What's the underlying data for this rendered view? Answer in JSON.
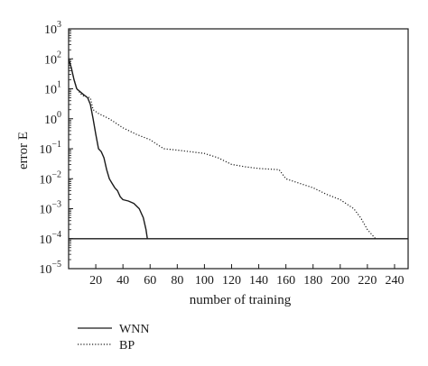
{
  "chart_data": {
    "type": "line",
    "title": "",
    "xlabel": "number of training",
    "ylabel": "error E",
    "y_scale": "log",
    "xlim": [
      0,
      250
    ],
    "ylim_exponents": [
      -5,
      3
    ],
    "x_ticks": [
      20,
      40,
      60,
      80,
      100,
      120,
      140,
      160,
      180,
      200,
      220,
      240
    ],
    "y_tick_base": "10",
    "y_ticks": [
      {
        "exp": "3",
        "value": 1000
      },
      {
        "exp": "2",
        "value": 100
      },
      {
        "exp": "1",
        "value": 10
      },
      {
        "exp": "0",
        "value": 1
      },
      {
        "exp": "−1",
        "value": 0.1
      },
      {
        "exp": "−2",
        "value": 0.01
      },
      {
        "exp": "−3",
        "value": 0.001
      },
      {
        "exp": "−4",
        "value": 0.0001
      },
      {
        "exp": "−5",
        "value": 1e-05
      }
    ],
    "grid": false,
    "legend_position": "bottom-left-outside",
    "series": [
      {
        "name": "WNN",
        "style": "solid",
        "color": "#1a1a1a",
        "points": [
          [
            0,
            100
          ],
          [
            2,
            50
          ],
          [
            4,
            20
          ],
          [
            6,
            10
          ],
          [
            10,
            7
          ],
          [
            14,
            5
          ],
          [
            16,
            3
          ],
          [
            18,
            1
          ],
          [
            20,
            0.3
          ],
          [
            22,
            0.1
          ],
          [
            24,
            0.08
          ],
          [
            26,
            0.05
          ],
          [
            28,
            0.02
          ],
          [
            30,
            0.01
          ],
          [
            32,
            0.007
          ],
          [
            34,
            0.005
          ],
          [
            36,
            0.004
          ],
          [
            38,
            0.0025
          ],
          [
            40,
            0.002
          ],
          [
            44,
            0.0018
          ],
          [
            48,
            0.0015
          ],
          [
            52,
            0.001
          ],
          [
            55,
            0.0005
          ],
          [
            57,
            0.0002
          ],
          [
            58,
            0.0001
          ]
        ]
      },
      {
        "name": "BP",
        "style": "dotted",
        "color": "#1a1a1a",
        "points": [
          [
            0,
            100
          ],
          [
            2,
            50
          ],
          [
            4,
            20
          ],
          [
            6,
            10
          ],
          [
            10,
            6
          ],
          [
            16,
            5
          ],
          [
            18,
            2
          ],
          [
            22,
            1.5
          ],
          [
            30,
            1
          ],
          [
            40,
            0.5
          ],
          [
            50,
            0.3
          ],
          [
            60,
            0.2
          ],
          [
            70,
            0.1
          ],
          [
            80,
            0.09
          ],
          [
            100,
            0.07
          ],
          [
            110,
            0.05
          ],
          [
            120,
            0.03
          ],
          [
            130,
            0.025
          ],
          [
            140,
            0.022
          ],
          [
            155,
            0.02
          ],
          [
            160,
            0.01
          ],
          [
            170,
            0.007
          ],
          [
            180,
            0.005
          ],
          [
            190,
            0.003
          ],
          [
            200,
            0.002
          ],
          [
            210,
            0.001
          ],
          [
            215,
            0.0005
          ],
          [
            220,
            0.0002
          ],
          [
            226,
            0.0001
          ]
        ]
      },
      {
        "name": "",
        "style": "solid",
        "color": "#1a1a1a",
        "points": [
          [
            0,
            0.0001
          ],
          [
            250,
            0.0001
          ]
        ]
      }
    ]
  }
}
